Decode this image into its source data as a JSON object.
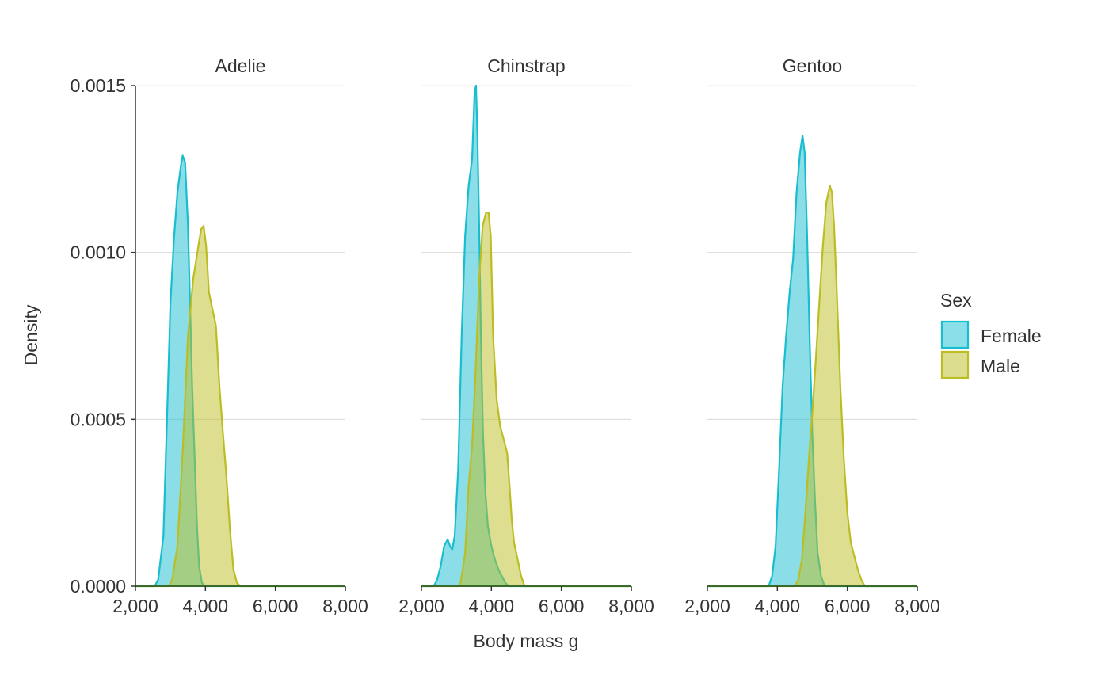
{
  "chart_data": {
    "type": "area",
    "subtype": "faceted density",
    "xlabel": "Body mass g",
    "ylabel": "Density",
    "xlim": [
      2000,
      8000
    ],
    "ylim": [
      0,
      0.0015
    ],
    "x_ticks": [
      "2,000",
      "4,000",
      "6,000",
      "8,000"
    ],
    "x_tick_values": [
      2000,
      4000,
      6000,
      8000
    ],
    "y_ticks": [
      "0.0000",
      "0.0005",
      "0.0010",
      "0.0015"
    ],
    "y_tick_values": [
      0,
      0.0005,
      0.001,
      0.0015
    ],
    "grid": "horizontal major",
    "legend": {
      "title": "Sex",
      "placement": "right",
      "entries": [
        {
          "label": "Female",
          "fill": "#8ADFE8",
          "stroke": "#17BECF"
        },
        {
          "label": "Male",
          "fill": "#DCDD8E",
          "stroke": "#BCBD22"
        }
      ]
    },
    "colors": {
      "Female": "#17BECF",
      "Male": "#BCBD22",
      "axis": "#333333",
      "baseline": "#3A6B2A",
      "grid": "#D9D9D9"
    },
    "facets": [
      {
        "label": "Adelie",
        "series": [
          {
            "name": "Female",
            "points": [
              [
                2000,
                0
              ],
              [
                2550,
                0
              ],
              [
                2650,
                2e-05
              ],
              [
                2800,
                0.00015
              ],
              [
                2900,
                0.0005
              ],
              [
                3000,
                0.00085
              ],
              [
                3100,
                0.00104
              ],
              [
                3200,
                0.00118
              ],
              [
                3300,
                0.00126
              ],
              [
                3350,
                0.00129
              ],
              [
                3420,
                0.00127
              ],
              [
                3500,
                0.00108
              ],
              [
                3560,
                0.00085
              ],
              [
                3620,
                0.0006
              ],
              [
                3700,
                0.00036
              ],
              [
                3760,
                0.00018
              ],
              [
                3820,
                6e-05
              ],
              [
                3900,
                1e-05
              ],
              [
                4000,
                0
              ],
              [
                8000,
                0
              ]
            ]
          },
          {
            "name": "Male",
            "points": [
              [
                2000,
                0
              ],
              [
                2950,
                0
              ],
              [
                3050,
                2e-05
              ],
              [
                3200,
                0.00012
              ],
              [
                3350,
                0.0004
              ],
              [
                3500,
                0.00075
              ],
              [
                3650,
                0.00092
              ],
              [
                3800,
                0.00102
              ],
              [
                3880,
                0.00107
              ],
              [
                3950,
                0.00108
              ],
              [
                4020,
                0.00102
              ],
              [
                4100,
                0.00088
              ],
              [
                4200,
                0.00083
              ],
              [
                4300,
                0.00078
              ],
              [
                4400,
                0.0006
              ],
              [
                4500,
                0.00046
              ],
              [
                4600,
                0.00033
              ],
              [
                4700,
                0.00017
              ],
              [
                4800,
                5e-05
              ],
              [
                4900,
                1e-05
              ],
              [
                5000,
                0
              ],
              [
                8000,
                0
              ]
            ]
          }
        ]
      },
      {
        "label": "Chinstrap",
        "series": [
          {
            "name": "Female",
            "points": [
              [
                2000,
                0
              ],
              [
                2350,
                0
              ],
              [
                2450,
                2e-05
              ],
              [
                2550,
                6e-05
              ],
              [
                2650,
                0.00012
              ],
              [
                2750,
                0.00014
              ],
              [
                2820,
                0.00012
              ],
              [
                2880,
                0.00011
              ],
              [
                2950,
                0.00015
              ],
              [
                3050,
                0.00035
              ],
              [
                3150,
                0.00075
              ],
              [
                3250,
                0.00105
              ],
              [
                3350,
                0.0012
              ],
              [
                3450,
                0.00128
              ],
              [
                3520,
                0.00148
              ],
              [
                3560,
                0.0015
              ],
              [
                3600,
                0.00135
              ],
              [
                3650,
                0.00108
              ],
              [
                3700,
                0.00075
              ],
              [
                3760,
                0.00046
              ],
              [
                3830,
                0.00028
              ],
              [
                3900,
                0.00018
              ],
              [
                4000,
                0.00012
              ],
              [
                4100,
                8e-05
              ],
              [
                4200,
                5e-05
              ],
              [
                4300,
                3e-05
              ],
              [
                4400,
                1e-05
              ],
              [
                4500,
                0
              ],
              [
                8000,
                0
              ]
            ]
          },
          {
            "name": "Male",
            "points": [
              [
                2000,
                0
              ],
              [
                3100,
                0
              ],
              [
                3150,
                3e-05
              ],
              [
                3250,
                0.0001
              ],
              [
                3350,
                0.0003
              ],
              [
                3450,
                0.00042
              ],
              [
                3550,
                0.00065
              ],
              [
                3650,
                0.00092
              ],
              [
                3750,
                0.00108
              ],
              [
                3850,
                0.00112
              ],
              [
                3920,
                0.00112
              ],
              [
                3980,
                0.00105
              ],
              [
                4050,
                0.00075
              ],
              [
                4150,
                0.00056
              ],
              [
                4250,
                0.00048
              ],
              [
                4350,
                0.00044
              ],
              [
                4450,
                0.0004
              ],
              [
                4520,
                0.0003
              ],
              [
                4580,
                0.0002
              ],
              [
                4650,
                0.00013
              ],
              [
                4750,
                8e-05
              ],
              [
                4850,
                3e-05
              ],
              [
                4950,
                0
              ],
              [
                8000,
                0
              ]
            ]
          }
        ]
      },
      {
        "label": "Gentoo",
        "series": [
          {
            "name": "Female",
            "points": [
              [
                2000,
                0
              ],
              [
                3750,
                0
              ],
              [
                3850,
                3e-05
              ],
              [
                3950,
                0.00012
              ],
              [
                4050,
                0.00035
              ],
              [
                4150,
                0.0006
              ],
              [
                4250,
                0.00075
              ],
              [
                4350,
                0.00088
              ],
              [
                4450,
                0.00098
              ],
              [
                4550,
                0.00118
              ],
              [
                4650,
                0.0013
              ],
              [
                4720,
                0.00135
              ],
              [
                4780,
                0.0013
              ],
              [
                4850,
                0.00105
              ],
              [
                4920,
                0.00075
              ],
              [
                5000,
                0.00045
              ],
              [
                5080,
                0.00025
              ],
              [
                5150,
                0.0001
              ],
              [
                5250,
                3e-05
              ],
              [
                5350,
                0
              ],
              [
                8000,
                0
              ]
            ]
          },
          {
            "name": "Male",
            "points": [
              [
                2000,
                0
              ],
              [
                4500,
                0
              ],
              [
                4600,
                2e-05
              ],
              [
                4700,
                8e-05
              ],
              [
                4800,
                0.00022
              ],
              [
                4900,
                0.00038
              ],
              [
                5000,
                0.00052
              ],
              [
                5100,
                0.00068
              ],
              [
                5200,
                0.00085
              ],
              [
                5300,
                0.00102
              ],
              [
                5400,
                0.00115
              ],
              [
                5500,
                0.0012
              ],
              [
                5560,
                0.00118
              ],
              [
                5620,
                0.00108
              ],
              [
                5700,
                0.00088
              ],
              [
                5800,
                0.0006
              ],
              [
                5900,
                0.00038
              ],
              [
                6000,
                0.00022
              ],
              [
                6100,
                0.00013
              ],
              [
                6200,
                9e-05
              ],
              [
                6300,
                5e-05
              ],
              [
                6400,
                2e-05
              ],
              [
                6500,
                0
              ],
              [
                8000,
                0
              ]
            ]
          }
        ]
      }
    ]
  }
}
